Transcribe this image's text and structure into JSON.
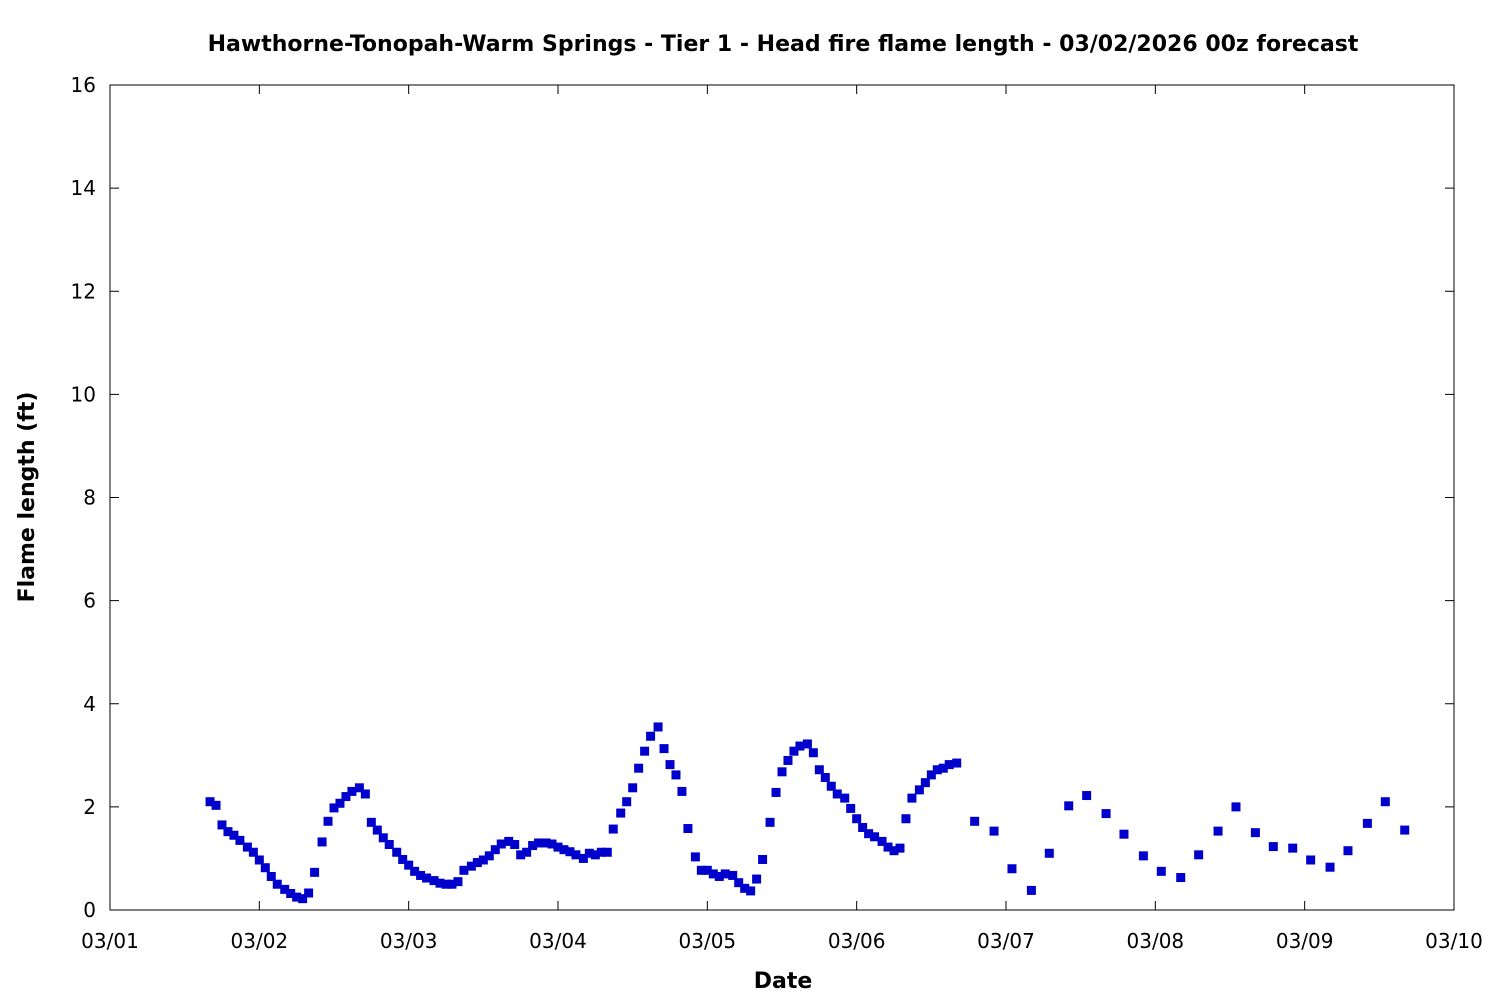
{
  "chart_data": {
    "type": "scatter",
    "title": "Hawthorne-Tonopah-Warm Springs - Tier 1 - Head fire flame length - 03/02/2026 00z forecast",
    "xlabel": "Date",
    "ylabel": "Flame length (ft)",
    "x_unit": "days since 03/01 00z",
    "xlim": [
      0,
      9
    ],
    "ylim": [
      0,
      16
    ],
    "x_tick_labels": [
      "03/01",
      "03/02",
      "03/03",
      "03/04",
      "03/05",
      "03/06",
      "03/07",
      "03/08",
      "03/09",
      "03/10"
    ],
    "y_tick_labels": [
      "0",
      "2",
      "4",
      "6",
      "8",
      "10",
      "12",
      "14",
      "16"
    ],
    "grid": false,
    "series": [
      {
        "color": "#0000cc",
        "marker": "square",
        "points": [
          [
            0.67,
            2.1
          ],
          [
            0.71,
            2.03
          ],
          [
            0.75,
            1.65
          ],
          [
            0.79,
            1.52
          ],
          [
            0.83,
            1.45
          ],
          [
            0.87,
            1.35
          ],
          [
            0.92,
            1.22
          ],
          [
            0.96,
            1.12
          ],
          [
            1.0,
            0.97
          ],
          [
            1.04,
            0.82
          ],
          [
            1.08,
            0.65
          ],
          [
            1.12,
            0.5
          ],
          [
            1.17,
            0.4
          ],
          [
            1.21,
            0.32
          ],
          [
            1.25,
            0.25
          ],
          [
            1.29,
            0.22
          ],
          [
            1.33,
            0.33
          ],
          [
            1.37,
            0.73
          ],
          [
            1.42,
            1.32
          ],
          [
            1.46,
            1.72
          ],
          [
            1.5,
            1.98
          ],
          [
            1.54,
            2.07
          ],
          [
            1.58,
            2.2
          ],
          [
            1.62,
            2.3
          ],
          [
            1.67,
            2.37
          ],
          [
            1.71,
            2.25
          ],
          [
            1.75,
            1.7
          ],
          [
            1.79,
            1.55
          ],
          [
            1.83,
            1.4
          ],
          [
            1.87,
            1.27
          ],
          [
            1.92,
            1.12
          ],
          [
            1.96,
            0.98
          ],
          [
            2.0,
            0.87
          ],
          [
            2.04,
            0.75
          ],
          [
            2.08,
            0.67
          ],
          [
            2.12,
            0.62
          ],
          [
            2.17,
            0.57
          ],
          [
            2.21,
            0.52
          ],
          [
            2.25,
            0.5
          ],
          [
            2.29,
            0.5
          ],
          [
            2.33,
            0.55
          ],
          [
            2.37,
            0.77
          ],
          [
            2.42,
            0.85
          ],
          [
            2.46,
            0.92
          ],
          [
            2.5,
            0.97
          ],
          [
            2.54,
            1.05
          ],
          [
            2.58,
            1.17
          ],
          [
            2.62,
            1.28
          ],
          [
            2.67,
            1.33
          ],
          [
            2.71,
            1.27
          ],
          [
            2.75,
            1.07
          ],
          [
            2.79,
            1.12
          ],
          [
            2.83,
            1.25
          ],
          [
            2.87,
            1.3
          ],
          [
            2.92,
            1.3
          ],
          [
            2.96,
            1.28
          ],
          [
            3.0,
            1.22
          ],
          [
            3.04,
            1.17
          ],
          [
            3.08,
            1.13
          ],
          [
            3.12,
            1.07
          ],
          [
            3.17,
            1.0
          ],
          [
            3.21,
            1.1
          ],
          [
            3.25,
            1.07
          ],
          [
            3.29,
            1.12
          ],
          [
            3.33,
            1.12
          ],
          [
            3.37,
            1.57
          ],
          [
            3.42,
            1.88
          ],
          [
            3.46,
            2.1
          ],
          [
            3.5,
            2.37
          ],
          [
            3.54,
            2.75
          ],
          [
            3.58,
            3.08
          ],
          [
            3.62,
            3.37
          ],
          [
            3.67,
            3.55
          ],
          [
            3.71,
            3.13
          ],
          [
            3.75,
            2.82
          ],
          [
            3.79,
            2.62
          ],
          [
            3.83,
            2.3
          ],
          [
            3.87,
            1.58
          ],
          [
            3.92,
            1.03
          ],
          [
            3.96,
            0.77
          ],
          [
            4.0,
            0.77
          ],
          [
            4.04,
            0.7
          ],
          [
            4.08,
            0.65
          ],
          [
            4.12,
            0.7
          ],
          [
            4.17,
            0.67
          ],
          [
            4.21,
            0.53
          ],
          [
            4.25,
            0.42
          ],
          [
            4.29,
            0.37
          ],
          [
            4.33,
            0.6
          ],
          [
            4.37,
            0.98
          ],
          [
            4.42,
            1.7
          ],
          [
            4.46,
            2.28
          ],
          [
            4.5,
            2.68
          ],
          [
            4.54,
            2.9
          ],
          [
            4.58,
            3.08
          ],
          [
            4.62,
            3.18
          ],
          [
            4.67,
            3.22
          ],
          [
            4.71,
            3.05
          ],
          [
            4.75,
            2.72
          ],
          [
            4.79,
            2.57
          ],
          [
            4.83,
            2.4
          ],
          [
            4.87,
            2.25
          ],
          [
            4.92,
            2.17
          ],
          [
            4.96,
            1.97
          ],
          [
            5.0,
            1.77
          ],
          [
            5.04,
            1.6
          ],
          [
            5.08,
            1.48
          ],
          [
            5.12,
            1.42
          ],
          [
            5.17,
            1.33
          ],
          [
            5.21,
            1.22
          ],
          [
            5.25,
            1.15
          ],
          [
            5.29,
            1.2
          ],
          [
            5.33,
            1.77
          ],
          [
            5.37,
            2.17
          ],
          [
            5.42,
            2.33
          ],
          [
            5.46,
            2.47
          ],
          [
            5.5,
            2.62
          ],
          [
            5.54,
            2.72
          ],
          [
            5.58,
            2.75
          ],
          [
            5.62,
            2.82
          ],
          [
            5.67,
            2.85
          ],
          [
            5.79,
            1.72
          ],
          [
            5.92,
            1.53
          ],
          [
            6.04,
            0.8
          ],
          [
            6.17,
            0.38
          ],
          [
            6.29,
            1.1
          ],
          [
            6.42,
            2.02
          ],
          [
            6.54,
            2.22
          ],
          [
            6.67,
            1.87
          ],
          [
            6.79,
            1.47
          ],
          [
            6.92,
            1.05
          ],
          [
            7.04,
            0.75
          ],
          [
            7.17,
            0.63
          ],
          [
            7.29,
            1.07
          ],
          [
            7.42,
            1.53
          ],
          [
            7.54,
            2.0
          ],
          [
            7.67,
            1.5
          ],
          [
            7.79,
            1.23
          ],
          [
            7.92,
            1.2
          ],
          [
            8.04,
            0.97
          ],
          [
            8.17,
            0.83
          ],
          [
            8.29,
            1.15
          ],
          [
            8.42,
            1.68
          ],
          [
            8.54,
            2.1
          ],
          [
            8.67,
            1.55
          ]
        ]
      }
    ]
  }
}
